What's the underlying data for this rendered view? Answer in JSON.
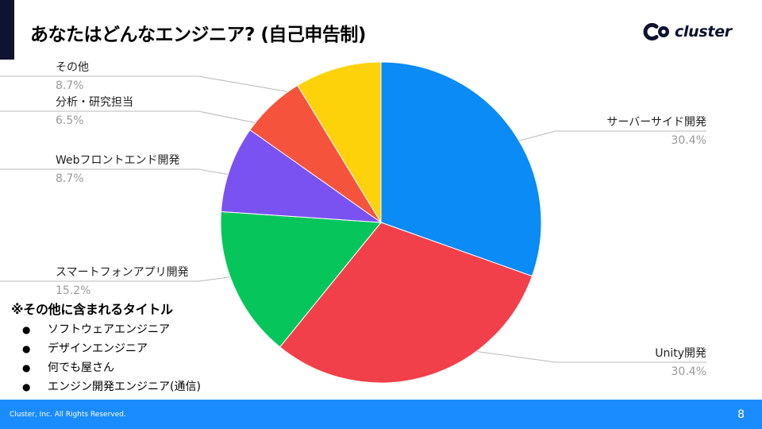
{
  "title": "あなたはどんなエンジニア? (自己申告制)",
  "logo": {
    "text": "cluster",
    "icon": "cluster-logo-icon"
  },
  "colors": {
    "accent_dark": "#0f1330",
    "footer": "#1a8cff"
  },
  "chart_data": {
    "type": "pie",
    "start_angle_deg": 0,
    "direction": "clockwise",
    "legend": "none",
    "slices": [
      {
        "label": "サーバーサイド開発",
        "value": 30.4,
        "value_label": "30.4%",
        "color": "#0a8bf5"
      },
      {
        "label": "Unity開発",
        "value": 30.4,
        "value_label": "30.4%",
        "color": "#f2404a"
      },
      {
        "label": "スマートフォンアプリ開発",
        "value": 15.2,
        "value_label": "15.2%",
        "color": "#06c65b"
      },
      {
        "label": "Webフロントエンド開発",
        "value": 8.7,
        "value_label": "8.7%",
        "color": "#7b52f2"
      },
      {
        "label": "分析・研究担当",
        "value": 6.5,
        "value_label": "6.5%",
        "color": "#f5533c"
      },
      {
        "label": "その他",
        "value": 8.7,
        "value_label": "8.7%",
        "color": "#fdd20a"
      }
    ]
  },
  "note": {
    "title": "※その他に含まれるタイトル",
    "bullet": "●",
    "items": [
      "ソフトウェアエンジニア",
      "デザインエンジニア",
      "何でも屋さん",
      "エンジン開発エンジニア(通信)"
    ]
  },
  "footer": {
    "copyright": "Cluster, Inc. All Rights Reserved.",
    "page_number": "8"
  }
}
